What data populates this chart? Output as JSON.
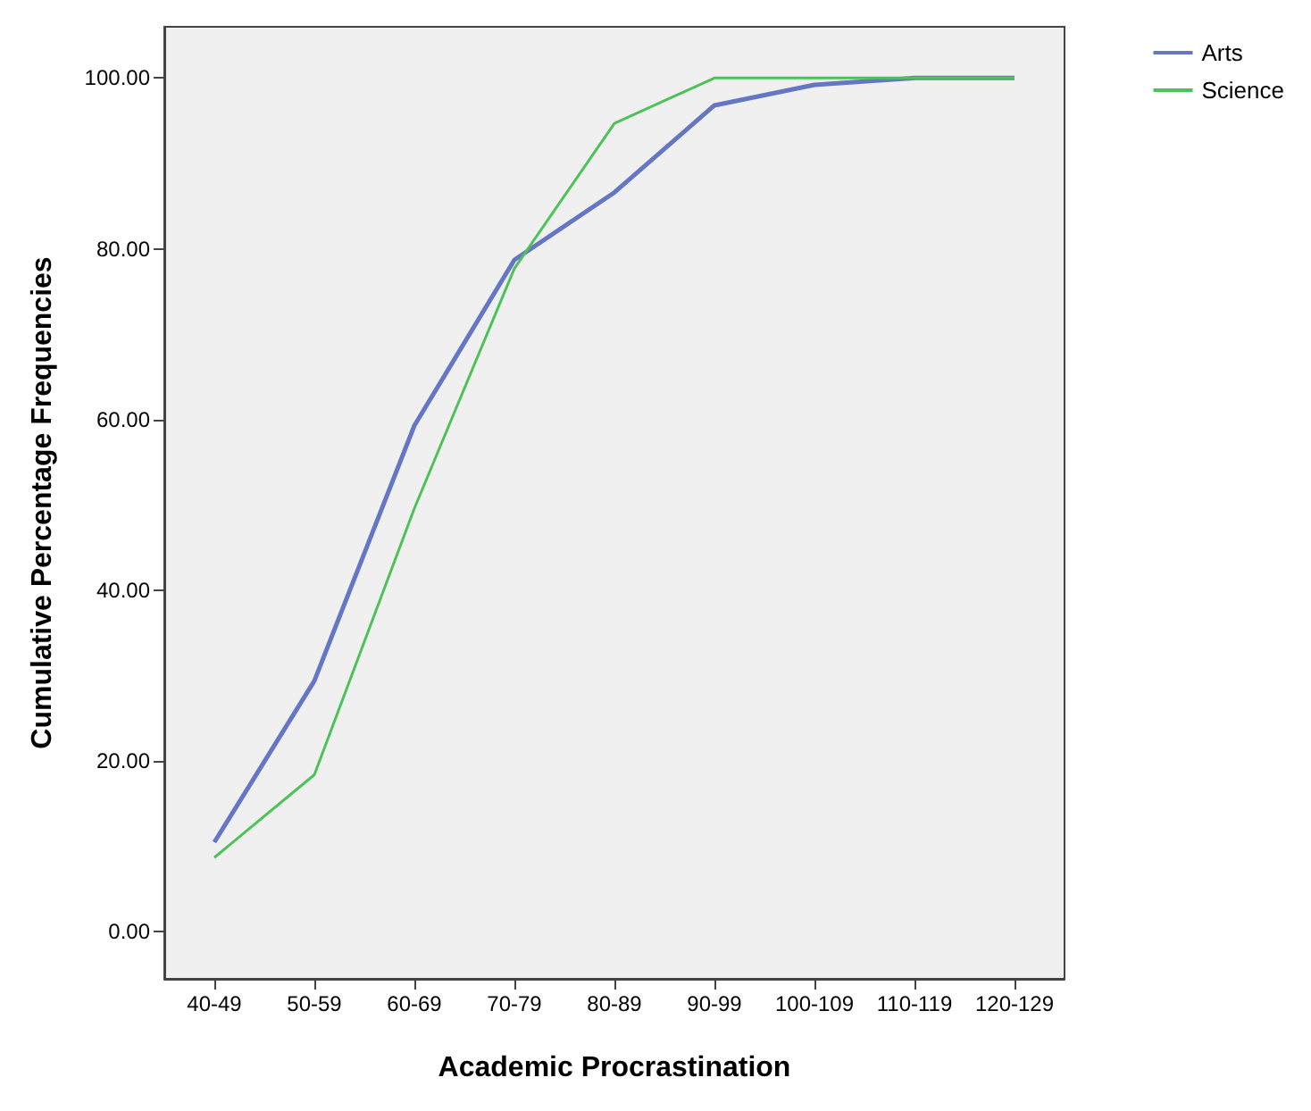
{
  "chart_data": {
    "type": "line",
    "xlabel": "Academic Procrastination",
    "ylabel": "Cumulative Percentage Frequencies",
    "categories": [
      "40-49",
      "50-59",
      "60-69",
      "70-79",
      "80-89",
      "90-99",
      "100-109",
      "110-119",
      "120-129"
    ],
    "series": [
      {
        "name": "Arts",
        "color": "#6476c4",
        "values": [
          10.5,
          29.4,
          59.3,
          78.7,
          86.6,
          96.8,
          99.2,
          100,
          100
        ]
      },
      {
        "name": "Science",
        "color": "#4ec25a",
        "values": [
          8.7,
          18.4,
          49.6,
          77.7,
          94.7,
          100,
          100,
          100,
          100
        ]
      }
    ],
    "ylim": [
      -5.5,
      106
    ],
    "yticks": [
      {
        "value": 0,
        "label": "0.00"
      },
      {
        "value": 20,
        "label": "20.00"
      },
      {
        "value": 40,
        "label": "40.00"
      },
      {
        "value": 60,
        "label": "60.00"
      },
      {
        "value": 80,
        "label": "80.00"
      },
      {
        "value": 100,
        "label": "100.00"
      }
    ],
    "grid": false,
    "legend": "top right",
    "marker": "none",
    "line_style": "solid"
  }
}
